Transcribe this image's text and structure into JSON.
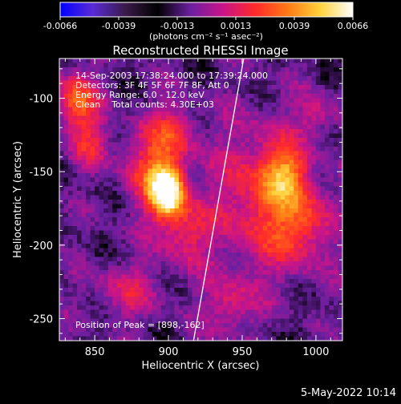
{
  "chart_data": {
    "type": "heatmap",
    "title": "Reconstructed RHESSI Image",
    "xlabel": "Heliocentric X (arcsec)",
    "ylabel": "Heliocentric Y (arcsec)",
    "xlim": [
      826,
      1018
    ],
    "ylim": [
      -265,
      -73
    ],
    "x_ticks": [
      850,
      900,
      950,
      1000
    ],
    "y_ticks": [
      -100,
      -150,
      -200,
      -250
    ],
    "colorbar": {
      "min": -0.0066,
      "max": 0.0066,
      "ticks": [
        "-0.0066",
        "-0.0039",
        "-0.0013",
        "0.0013",
        "0.0039",
        "0.0066"
      ],
      "unit_label": "(photons cm⁻² s⁻¹ asec⁻²)",
      "colormap": [
        "#0000ff",
        "#5a2bd6",
        "#3a1a4a",
        "#000000",
        "#6a1fa0",
        "#c8148a",
        "#ff2a2a",
        "#ff7a14",
        "#ffd23c",
        "#ffffff"
      ]
    },
    "annotations": [
      "14-Sep-2003 17:38:24.000 to 17:39:24.000",
      "Detectors: 3F 4F 5F 6F 7F 8F, Att 0",
      "Energy Range: 6.0 - 12.0 keV",
      "Clean    Total counts: 4.30E+03"
    ],
    "peak_label": "Position of Peak = [898,-162]",
    "peak": {
      "x": 898,
      "y": -162
    },
    "limb_line": [
      [
        951,
        -73
      ],
      [
        917,
        -265
      ]
    ],
    "sources": [
      {
        "x": 898,
        "y": -162,
        "amp": 1.0,
        "sx": 8,
        "sy": 12
      },
      {
        "x": 888,
        "y": -145,
        "amp": 0.45,
        "sx": 14,
        "sy": 22
      },
      {
        "x": 910,
        "y": -190,
        "amp": 0.35,
        "sx": 12,
        "sy": 16
      },
      {
        "x": 905,
        "y": -120,
        "amp": 0.3,
        "sx": 10,
        "sy": 12
      },
      {
        "x": 836,
        "y": -100,
        "amp": 0.55,
        "sx": 10,
        "sy": 14
      },
      {
        "x": 845,
        "y": -130,
        "amp": 0.3,
        "sx": 10,
        "sy": 12
      },
      {
        "x": 962,
        "y": -165,
        "amp": 0.45,
        "sx": 22,
        "sy": 35
      },
      {
        "x": 978,
        "y": -150,
        "amp": 0.4,
        "sx": 10,
        "sy": 12
      },
      {
        "x": 990,
        "y": -185,
        "amp": 0.35,
        "sx": 14,
        "sy": 20
      },
      {
        "x": 940,
        "y": -240,
        "amp": 0.3,
        "sx": 12,
        "sy": 14
      },
      {
        "x": 870,
        "y": -230,
        "amp": 0.25,
        "sx": 18,
        "sy": 14
      },
      {
        "x": 1000,
        "y": -110,
        "amp": 0.25,
        "sx": 10,
        "sy": 10
      }
    ],
    "grid": false
  },
  "footer": {
    "date_stamp": "5-May-2022 10:14"
  }
}
